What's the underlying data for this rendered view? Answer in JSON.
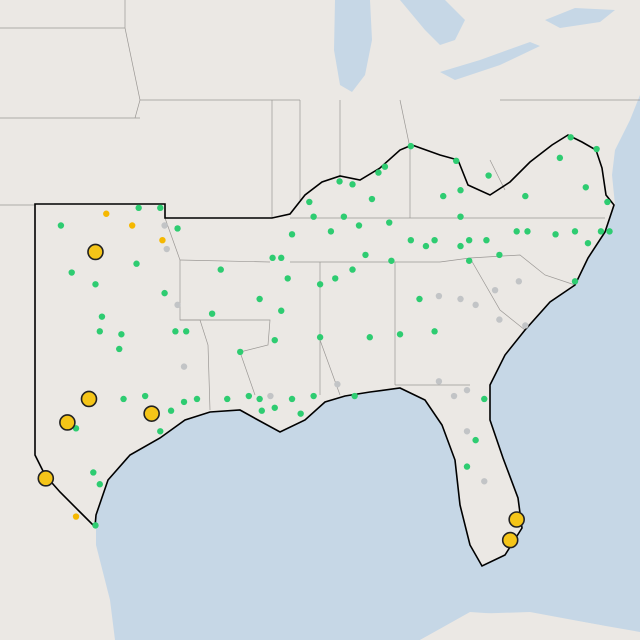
{
  "map": {
    "markers": [
      {
        "color": "#2ecc71",
        "points": [
          {
            "lon": -101.8,
            "lat": 35.8
          },
          {
            "lon": -98.2,
            "lat": 36.4
          },
          {
            "lon": -97.2,
            "lat": 36.4
          },
          {
            "lon": -96.4,
            "lat": 35.7
          },
          {
            "lon": -101.3,
            "lat": 34.2
          },
          {
            "lon": -100.2,
            "lat": 33.8
          },
          {
            "lon": -98.3,
            "lat": 34.5
          },
          {
            "lon": -99.9,
            "lat": 32.7
          },
          {
            "lon": -100.0,
            "lat": 32.2
          },
          {
            "lon": -99.0,
            "lat": 32.1
          },
          {
            "lon": -99.1,
            "lat": 31.6
          },
          {
            "lon": -96.5,
            "lat": 32.2
          },
          {
            "lon": -96.0,
            "lat": 32.2
          },
          {
            "lon": -94.8,
            "lat": 32.8
          },
          {
            "lon": -97.0,
            "lat": 33.5
          },
          {
            "lon": -94.4,
            "lat": 34.3
          },
          {
            "lon": -92.6,
            "lat": 33.3
          },
          {
            "lon": -92.0,
            "lat": 34.7
          },
          {
            "lon": -91.6,
            "lat": 34.7
          },
          {
            "lon": -91.1,
            "lat": 35.5
          },
          {
            "lon": -90.3,
            "lat": 36.6
          },
          {
            "lon": -90.1,
            "lat": 36.1
          },
          {
            "lon": -88.7,
            "lat": 36.1
          },
          {
            "lon": -87.4,
            "lat": 36.7
          },
          {
            "lon": -87.1,
            "lat": 37.6
          },
          {
            "lon": -86.8,
            "lat": 37.8
          },
          {
            "lon": -85.6,
            "lat": 38.5
          },
          {
            "lon": -83.5,
            "lat": 38.0
          },
          {
            "lon": -84.1,
            "lat": 36.8
          },
          {
            "lon": -83.3,
            "lat": 37.0
          },
          {
            "lon": -82.0,
            "lat": 37.5
          },
          {
            "lon": -80.3,
            "lat": 36.8
          },
          {
            "lon": -78.7,
            "lat": 38.1
          },
          {
            "lon": -78.2,
            "lat": 38.8
          },
          {
            "lon": -77.0,
            "lat": 38.4
          },
          {
            "lon": -77.5,
            "lat": 37.1
          },
          {
            "lon": -76.5,
            "lat": 36.6
          },
          {
            "lon": -76.4,
            "lat": 35.6
          },
          {
            "lon": -77.4,
            "lat": 35.2
          },
          {
            "lon": -78.0,
            "lat": 33.9
          },
          {
            "lon": -78.9,
            "lat": 35.5
          },
          {
            "lon": -80.2,
            "lat": 35.6
          },
          {
            "lon": -80.7,
            "lat": 35.6
          },
          {
            "lon": -81.5,
            "lat": 34.8
          },
          {
            "lon": -82.9,
            "lat": 35.3
          },
          {
            "lon": -82.1,
            "lat": 35.3
          },
          {
            "lon": -83.3,
            "lat": 35.1
          },
          {
            "lon": -84.5,
            "lat": 35.3
          },
          {
            "lon": -84.9,
            "lat": 35.1
          },
          {
            "lon": -85.6,
            "lat": 35.3
          },
          {
            "lon": -86.5,
            "lat": 34.6
          },
          {
            "lon": -87.7,
            "lat": 34.8
          },
          {
            "lon": -88.3,
            "lat": 34.3
          },
          {
            "lon": -89.1,
            "lat": 34.0
          },
          {
            "lon": -89.8,
            "lat": 33.8
          },
          {
            "lon": -91.3,
            "lat": 34.0
          },
          {
            "lon": -91.9,
            "lat": 31.9
          },
          {
            "lon": -89.8,
            "lat": 32.0
          },
          {
            "lon": -87.5,
            "lat": 32.0
          },
          {
            "lon": -86.1,
            "lat": 32.1
          },
          {
            "lon": -84.5,
            "lat": 32.2
          },
          {
            "lon": -85.2,
            "lat": 33.3
          },
          {
            "lon": -86.6,
            "lat": 35.9
          },
          {
            "lon": -88.0,
            "lat": 35.8
          },
          {
            "lon": -89.3,
            "lat": 35.6
          },
          {
            "lon": -88.9,
            "lat": 37.3
          },
          {
            "lon": -88.3,
            "lat": 37.2
          },
          {
            "lon": -83.3,
            "lat": 36.1
          },
          {
            "lon": -82.9,
            "lat": 34.6
          },
          {
            "lon": -97.9,
            "lat": 30.0
          },
          {
            "lon": -96.7,
            "lat": 29.5
          },
          {
            "lon": -96.1,
            "lat": 29.8
          },
          {
            "lon": -95.5,
            "lat": 29.9
          },
          {
            "lon": -94.1,
            "lat": 29.9
          },
          {
            "lon": -93.1,
            "lat": 30.0
          },
          {
            "lon": -92.6,
            "lat": 29.9
          },
          {
            "lon": -91.9,
            "lat": 29.6
          },
          {
            "lon": -91.1,
            "lat": 29.9
          },
          {
            "lon": -90.1,
            "lat": 30.0
          },
          {
            "lon": -97.2,
            "lat": 28.8
          },
          {
            "lon": -98.9,
            "lat": 29.9
          },
          {
            "lon": -101.1,
            "lat": 28.9
          },
          {
            "lon": -100.3,
            "lat": 27.4
          },
          {
            "lon": -100.0,
            "lat": 27.0
          },
          {
            "lon": -100.2,
            "lat": 25.6
          },
          {
            "lon": -82.2,
            "lat": 29.9
          },
          {
            "lon": -83.0,
            "lat": 27.6
          },
          {
            "lon": -82.6,
            "lat": 28.5
          },
          {
            "lon": -91.6,
            "lat": 32.9
          },
          {
            "lon": -93.5,
            "lat": 31.5
          },
          {
            "lon": -92.5,
            "lat": 29.5
          },
          {
            "lon": -90.7,
            "lat": 29.4
          },
          {
            "lon": -88.2,
            "lat": 30.0
          },
          {
            "lon": -78.0,
            "lat": 35.6
          },
          {
            "lon": -76.8,
            "lat": 35.6
          }
        ]
      },
      {
        "color": "#c2c4c6",
        "points": [
          {
            "lon": -96.9,
            "lat": 35.0
          },
          {
            "lon": -96.4,
            "lat": 33.1
          },
          {
            "lon": -96.1,
            "lat": 31.0
          },
          {
            "lon": -89.0,
            "lat": 30.4
          },
          {
            "lon": -84.3,
            "lat": 33.4
          },
          {
            "lon": -83.3,
            "lat": 33.3
          },
          {
            "lon": -82.6,
            "lat": 33.1
          },
          {
            "lon": -81.7,
            "lat": 33.6
          },
          {
            "lon": -80.6,
            "lat": 33.9
          },
          {
            "lon": -80.3,
            "lat": 32.4
          },
          {
            "lon": -81.5,
            "lat": 32.6
          },
          {
            "lon": -84.3,
            "lat": 30.5
          },
          {
            "lon": -83.6,
            "lat": 30.0
          },
          {
            "lon": -83.0,
            "lat": 28.8
          },
          {
            "lon": -82.2,
            "lat": 27.1
          },
          {
            "lon": -83.0,
            "lat": 30.2
          },
          {
            "lon": -97.0,
            "lat": 35.8
          },
          {
            "lon": -92.1,
            "lat": 30.0
          }
        ]
      },
      {
        "color": "#f5b800",
        "points": [
          {
            "lon": -99.7,
            "lat": 36.2
          },
          {
            "lon": -98.5,
            "lat": 35.8
          },
          {
            "lon": -97.1,
            "lat": 35.3
          },
          {
            "lon": -101.1,
            "lat": 25.9
          }
        ]
      },
      {
        "color": "#f5c518",
        "points": [
          {
            "lon": -100.2,
            "lat": 34.9
          },
          {
            "lon": -100.5,
            "lat": 29.9
          },
          {
            "lon": -97.6,
            "lat": 29.4
          },
          {
            "lon": -101.5,
            "lat": 29.1
          },
          {
            "lon": -102.5,
            "lat": 27.2
          },
          {
            "lon": -80.7,
            "lat": 25.8
          },
          {
            "lon": -81.0,
            "lat": 25.1
          }
        ]
      }
    ]
  }
}
